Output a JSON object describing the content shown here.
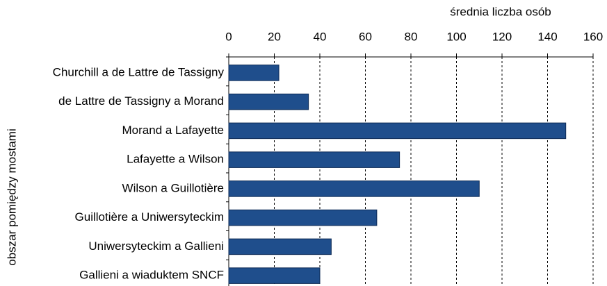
{
  "chart_data": {
    "type": "bar",
    "x_label": "średnia liczba osób",
    "y_label": "obszar pomiędzy mostami",
    "categories": [
      "Churchill a de Lattre de Tassigny",
      "de Lattre de Tassigny a Morand",
      "Morand a Lafayette",
      "Lafayette a Wilson",
      "Wilson a Guillotière",
      "Guillotière a Uniwersyteckim",
      "Uniwersyteckim a Gallieni",
      "Gallieni a wiaduktem SNCF"
    ],
    "values": [
      22,
      35,
      148,
      75,
      110,
      65,
      45,
      40
    ],
    "color": "#1f4e8c",
    "xlim": [
      0,
      160
    ],
    "xticks": [
      0,
      20,
      40,
      60,
      80,
      100,
      120,
      140,
      160
    ],
    "grid": true
  }
}
